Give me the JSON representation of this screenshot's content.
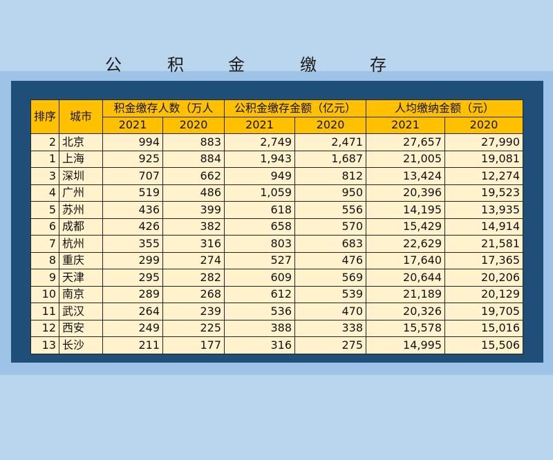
{
  "title_chars": [
    "公",
    "积",
    "金",
    "缴",
    "存"
  ],
  "table": {
    "header_rank": "排序",
    "header_city": "城市",
    "groups": [
      "积金缴存人数（万人",
      "公积金缴存金额（亿元）",
      "人均缴纳金额（元）"
    ],
    "years": [
      "2021",
      "2020",
      "2021",
      "2020",
      "2021",
      "2020"
    ],
    "rows": [
      {
        "rank": "2",
        "city": "北京",
        "values": [
          "994",
          "883",
          "2,749",
          "2,471",
          "27,657",
          "27,990"
        ]
      },
      {
        "rank": "1",
        "city": "上海",
        "values": [
          "925",
          "884",
          "1,943",
          "1,687",
          "21,005",
          "19,081"
        ]
      },
      {
        "rank": "3",
        "city": "深圳",
        "values": [
          "707",
          "662",
          "949",
          "812",
          "13,424",
          "12,274"
        ]
      },
      {
        "rank": "4",
        "city": "广州",
        "values": [
          "519",
          "486",
          "1,059",
          "950",
          "20,396",
          "19,523"
        ]
      },
      {
        "rank": "5",
        "city": "苏州",
        "values": [
          "436",
          "399",
          "618",
          "556",
          "14,195",
          "13,935"
        ]
      },
      {
        "rank": "6",
        "city": "成都",
        "values": [
          "426",
          "382",
          "658",
          "570",
          "15,429",
          "14,914"
        ]
      },
      {
        "rank": "7",
        "city": "杭州",
        "values": [
          "355",
          "316",
          "803",
          "683",
          "22,629",
          "21,581"
        ]
      },
      {
        "rank": "8",
        "city": "重庆",
        "values": [
          "299",
          "274",
          "527",
          "476",
          "17,640",
          "17,365"
        ]
      },
      {
        "rank": "9",
        "city": "天津",
        "values": [
          "295",
          "282",
          "609",
          "569",
          "20,644",
          "20,206"
        ]
      },
      {
        "rank": "10",
        "city": "南京",
        "values": [
          "289",
          "268",
          "612",
          "539",
          "21,189",
          "20,129"
        ]
      },
      {
        "rank": "11",
        "city": "武汉",
        "values": [
          "264",
          "239",
          "536",
          "470",
          "20,326",
          "19,705"
        ]
      },
      {
        "rank": "12",
        "city": "西安",
        "values": [
          "249",
          "225",
          "388",
          "338",
          "15,578",
          "15,016"
        ]
      },
      {
        "rank": "13",
        "city": "长沙",
        "values": [
          "211",
          "177",
          "316",
          "275",
          "14,995",
          "15,506"
        ]
      }
    ]
  }
}
